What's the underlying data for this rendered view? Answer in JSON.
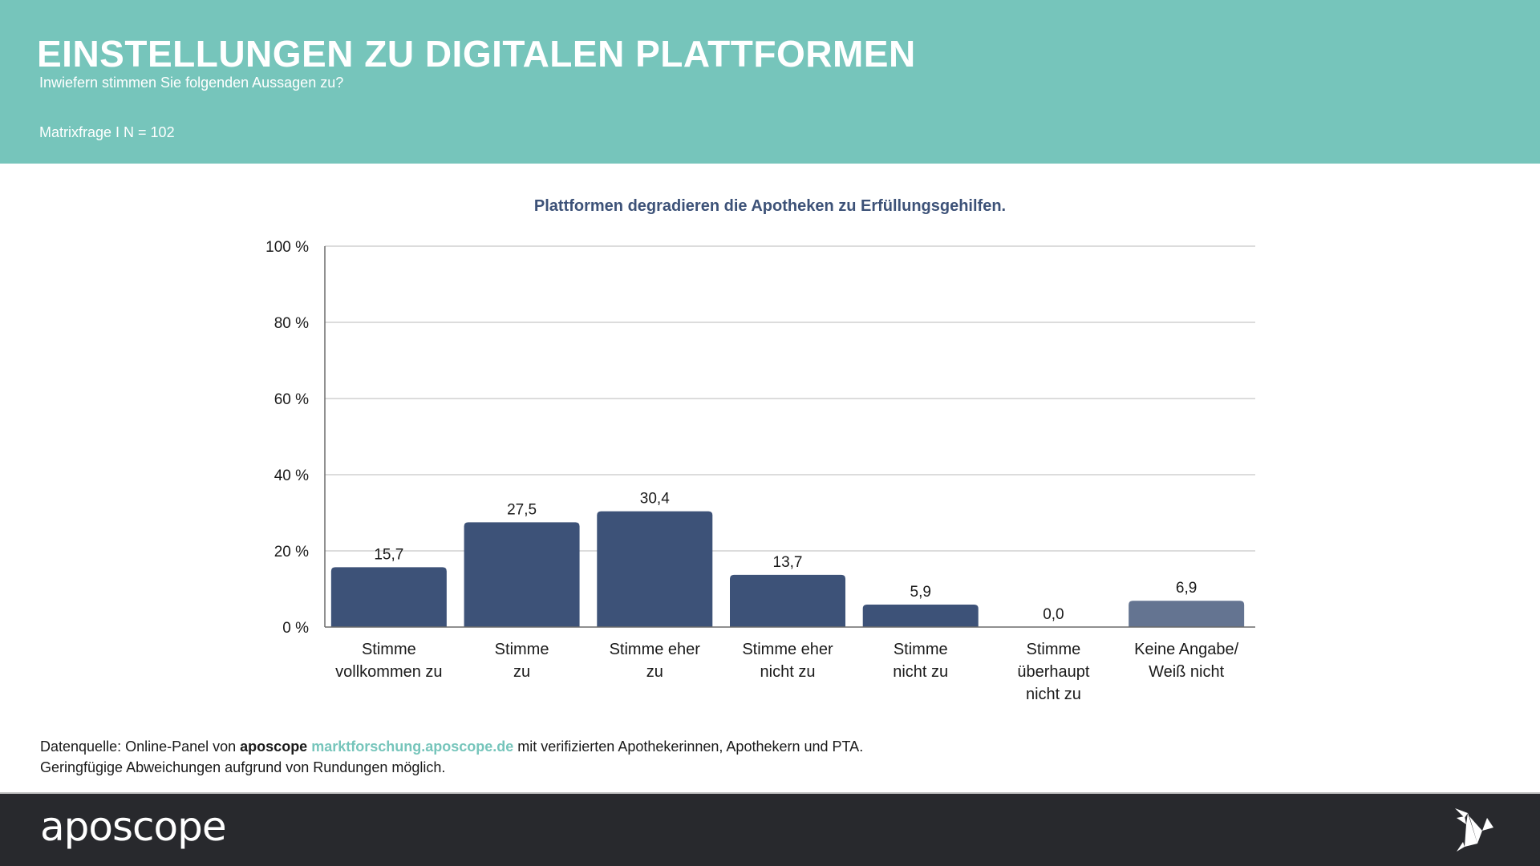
{
  "header": {
    "title": "EINSTELLUNGEN ZU DIGITALEN PLATTFORMEN",
    "subtitle": "Inwiefern stimmen Sie folgenden Aussagen zu?",
    "meta": "Matrixfrage I N = 102"
  },
  "colors": {
    "header_bg": "#76c5bb",
    "bar_primary": "#3d5278",
    "bar_secondary": "#647491",
    "footer_bg": "#28292d",
    "link": "#76c5bb"
  },
  "chart_data": {
    "type": "bar",
    "title": "Plattformen degradieren die Apotheken zu Erfüllungsgehilfen.",
    "xlabel": "",
    "ylabel": "",
    "ylim": [
      0,
      100
    ],
    "yticks": [
      0,
      20,
      40,
      60,
      80,
      100
    ],
    "ytick_labels": [
      "0 %",
      "20 %",
      "40 %",
      "60 %",
      "80 %",
      "100 %"
    ],
    "grid": true,
    "legend": "none",
    "categories": [
      [
        "Stimme",
        "vollkommen zu"
      ],
      [
        "Stimme",
        "zu"
      ],
      [
        "Stimme eher",
        "zu"
      ],
      [
        "Stimme eher",
        "nicht zu"
      ],
      [
        "Stimme",
        "nicht zu"
      ],
      [
        "Stimme",
        "überhaupt",
        "nicht zu"
      ],
      [
        "Keine Angabe/",
        "Weiß nicht"
      ]
    ],
    "values": [
      15.7,
      27.5,
      30.4,
      13.7,
      5.9,
      0.0,
      6.9
    ],
    "value_labels": [
      "15,7",
      "27,5",
      "30,4",
      "13,7",
      "5,9",
      "0,0",
      "6,9"
    ],
    "bar_color_keys": [
      "primary",
      "primary",
      "primary",
      "primary",
      "primary",
      "primary",
      "secondary"
    ]
  },
  "source": {
    "prefix": "Datenquelle: Online-Panel von ",
    "brand": "aposcope",
    "link": "marktforschung.aposcope.de",
    "suffix": " mit verifizierten Apothekerinnen, Apothekern und PTA.",
    "note": "Geringfügige Abweichungen aufgrund von Rundungen möglich."
  },
  "footer": {
    "logo_text": "aposcope",
    "icon": "origami-bird-icon"
  }
}
